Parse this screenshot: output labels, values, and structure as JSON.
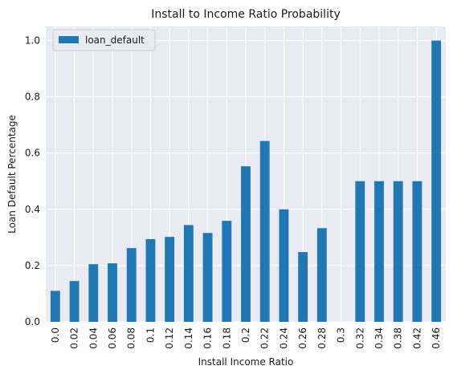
{
  "chart_data": {
    "type": "bar",
    "title": "Install to Income Ratio Probability",
    "xlabel": "Install Income Ratio",
    "ylabel": "Loan Default Percentage",
    "categories": [
      "0.0",
      "0.02",
      "0.04",
      "0.06",
      "0.08",
      "0.1",
      "0.12",
      "0.14",
      "0.16",
      "0.18",
      "0.2",
      "0.22",
      "0.24",
      "0.26",
      "0.28",
      "0.3",
      "0.32",
      "0.34",
      "0.38",
      "0.42",
      "0.46"
    ],
    "series": [
      {
        "name": "loan_default",
        "values": [
          0.11,
          0.145,
          0.205,
          0.208,
          0.262,
          0.294,
          0.302,
          0.344,
          0.316,
          0.359,
          0.553,
          0.643,
          0.4,
          0.248,
          0.333,
          0.0,
          0.5,
          0.5,
          0.5,
          0.5,
          1.0
        ]
      }
    ],
    "ylim": [
      0,
      1.05
    ],
    "yticks": [
      "0.0",
      "0.2",
      "0.4",
      "0.6",
      "0.8",
      "1.0"
    ],
    "grid": true,
    "legend_position": "top-left",
    "colors": {
      "bar": "#1f77b4",
      "background": "#eaeaf2",
      "grid": "#ffffff"
    }
  }
}
